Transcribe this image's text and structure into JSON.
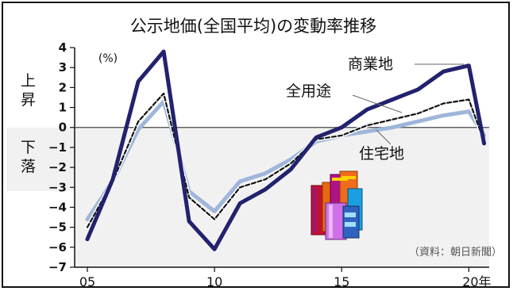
{
  "chart_data": {
    "type": "line",
    "title": "公示地価(全国平均)の変動率推移",
    "unit": "(%)",
    "ylim": [
      -7,
      4
    ],
    "yticks": [
      4,
      3,
      2,
      1,
      0,
      -1,
      -2,
      -3,
      -4,
      -5,
      -6,
      -7
    ],
    "ytick_labels": [
      "4",
      "3",
      "2",
      "1",
      "0",
      "−1",
      "−2",
      "−3",
      "−4",
      "−5",
      "−6",
      "−7"
    ],
    "xlim": [
      2004.5,
      2020.8
    ],
    "xticks": [
      2005,
      2010,
      2015,
      2020
    ],
    "xtick_labels": [
      "05",
      "10",
      "15",
      "20年"
    ],
    "x": [
      2005,
      2006,
      2007,
      2008,
      2009,
      2010,
      2011,
      2012,
      2013,
      2014,
      2015,
      2016,
      2017,
      2018,
      2019,
      2020
    ],
    "series": [
      {
        "name": "商業地",
        "color": "#22226e",
        "style": "solid-thick",
        "values": [
          -5.6,
          -2.6,
          2.3,
          3.8,
          -4.7,
          -6.1,
          -3.8,
          -3.1,
          -2.1,
          -0.5,
          0.0,
          0.9,
          1.4,
          1.9,
          2.8,
          3.1,
          -0.8
        ]
      },
      {
        "name": "全用途",
        "color": "#111111",
        "style": "dashed",
        "values": [
          -5.0,
          -2.7,
          0.3,
          1.7,
          -3.5,
          -4.6,
          -3.0,
          -2.6,
          -1.8,
          -0.6,
          -0.4,
          0.1,
          0.4,
          0.7,
          1.2,
          1.4,
          -0.7
        ]
      },
      {
        "name": "住宅地",
        "color": "#9fb6db",
        "style": "solid-light",
        "values": [
          -4.6,
          -2.7,
          -0.1,
          1.3,
          -3.2,
          -4.2,
          -2.7,
          -2.3,
          -1.6,
          -0.7,
          -0.4,
          -0.2,
          0.0,
          0.3,
          0.6,
          0.8,
          -0.4
        ]
      }
    ],
    "x_values": [
      2005,
      2006,
      2007,
      2008,
      2009,
      2010,
      2011,
      2012,
      2013,
      2014,
      2015,
      2016,
      2017,
      2018,
      2019,
      2020,
      2020.6
    ],
    "zero_line": true
  },
  "side_labels": {
    "up": "上昇",
    "down": "下落"
  },
  "source": "（資料：朝日新聞）",
  "illustration": "city-buildings-icon"
}
